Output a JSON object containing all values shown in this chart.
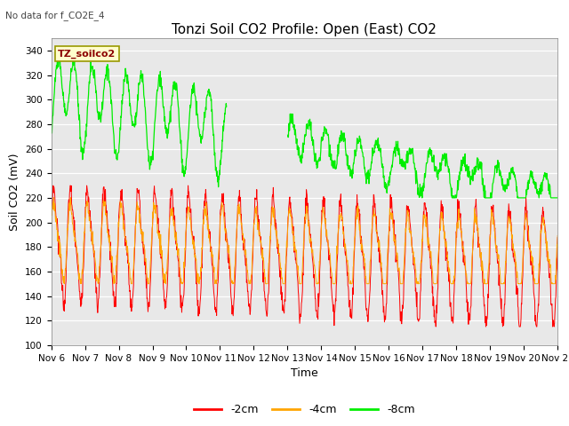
{
  "title": "Tonzi Soil CO2 Profile: Open (East) CO2",
  "no_data_text": "No data for f_CO2E_4",
  "legend_box_label": "TZ_soilco2",
  "xlabel": "Time",
  "ylabel": "Soil CO2 (mV)",
  "ylim": [
    100,
    350
  ],
  "yticks": [
    100,
    120,
    140,
    160,
    180,
    200,
    220,
    240,
    260,
    280,
    300,
    320,
    340
  ],
  "x_start_day": 6,
  "x_end_day": 21,
  "x_tick_days": [
    6,
    7,
    8,
    9,
    10,
    11,
    12,
    13,
    14,
    15,
    16,
    17,
    18,
    19,
    20,
    21
  ],
  "colors": {
    "minus2cm": "#ff0000",
    "minus4cm": "#ffa500",
    "minus8cm": "#00ee00",
    "background": "#e8e8e8",
    "legend_box_bg": "#ffffcc",
    "legend_box_edge": "#999900"
  },
  "line_labels": [
    "-2cm",
    "-4cm",
    "-8cm"
  ],
  "title_fontsize": 11,
  "axis_label_fontsize": 9,
  "tick_fontsize": 7.5
}
